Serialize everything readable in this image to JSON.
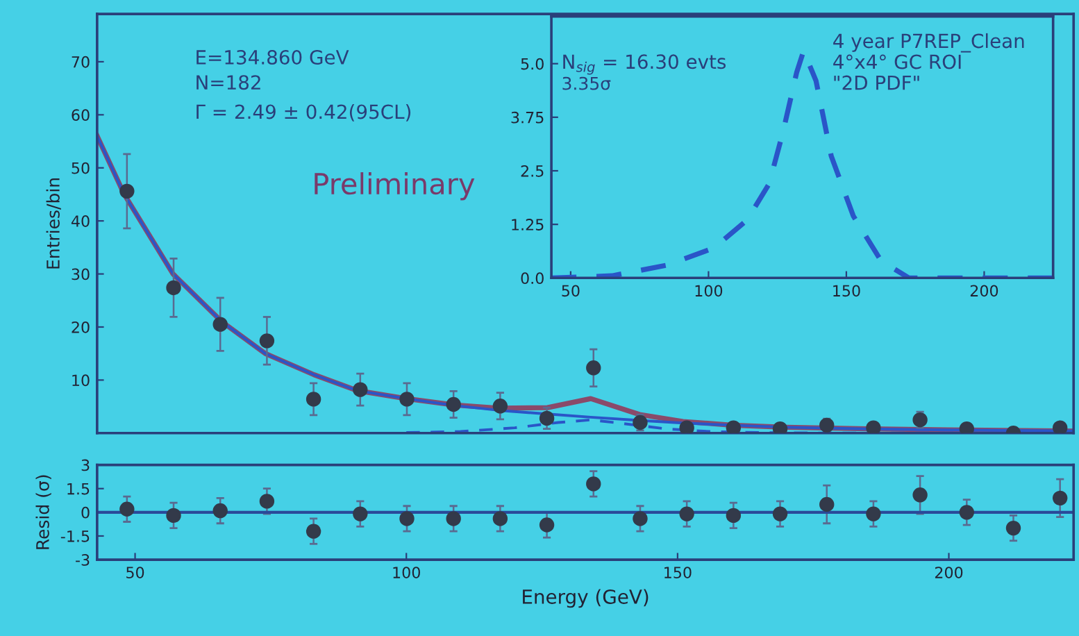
{
  "chart_data": [
    {
      "type": "scatter",
      "ylabel": "Entries/bin",
      "xlim": [
        43,
        223
      ],
      "ylim": [
        0,
        79
      ],
      "yticks": [
        10,
        20,
        30,
        40,
        50,
        60,
        70
      ],
      "tick_labels": "y",
      "grid": false,
      "legend": false,
      "annotations": [
        "E=134.860 GeV",
        "N=182",
        "Γ = 2.49 ± 0.42(95CL)",
        "Preliminary"
      ],
      "series": [
        {
          "type": "line",
          "color": "#8a4a6a",
          "line_style": "solid",
          "marker": "none",
          "x": [
            43,
            48,
            57,
            66,
            74,
            83,
            91,
            100,
            109,
            117,
            126,
            134,
            143,
            151,
            160,
            170,
            185,
            200,
            223
          ],
          "values": [
            56,
            45,
            30,
            21,
            15,
            11,
            8,
            6.5,
            5.3,
            4.7,
            4.8,
            6.5,
            3.5,
            2.2,
            1.5,
            1.1,
            0.8,
            0.6,
            0.4
          ]
        },
        {
          "type": "line",
          "color": "#2a55c8",
          "line_style": "solid",
          "marker": "none",
          "x": [
            43,
            48,
            57,
            66,
            74,
            83,
            91,
            100,
            109,
            117,
            126,
            134,
            143,
            151,
            160,
            170,
            185,
            200,
            223
          ],
          "values": [
            56,
            45,
            30,
            21,
            15,
            11,
            8,
            6.5,
            5.2,
            4.3,
            3.6,
            3.0,
            2.4,
            1.9,
            1.5,
            1.1,
            0.8,
            0.6,
            0.4
          ]
        },
        {
          "type": "line",
          "color": "#2a55c8",
          "line_style": "dashed",
          "marker": "none",
          "x": [
            100,
            110,
            120,
            128,
            134,
            140,
            148,
            156,
            165,
            180,
            223
          ],
          "values": [
            0.1,
            0.3,
            1.0,
            2.0,
            2.5,
            1.8,
            0.8,
            0.3,
            0.1,
            0,
            0
          ]
        },
        {
          "type": "scatter",
          "color": "#333a4a",
          "marker": "circle",
          "x": [
            48.5,
            57.1,
            65.7,
            74.3,
            82.9,
            91.5,
            100.1,
            108.7,
            117.3,
            125.9,
            134.5,
            143.1,
            151.7,
            160.3,
            168.9,
            177.5,
            186.1,
            194.7,
            203.3,
            211.9,
            220.5
          ],
          "values": [
            45.6,
            27.4,
            20.5,
            17.4,
            6.4,
            8.2,
            6.4,
            5.4,
            5.1,
            2.8,
            12.3,
            2.0,
            1.0,
            1.0,
            0.8,
            1.5,
            1.0,
            2.5,
            0.8,
            0,
            1.0
          ],
          "errors": [
            7,
            5.5,
            5,
            4.5,
            3,
            3,
            3,
            2.5,
            2.5,
            2,
            3.5,
            1.5,
            1,
            1,
            1,
            1.2,
            1,
            1.5,
            1,
            null,
            1
          ]
        }
      ]
    },
    {
      "type": "line",
      "xlim": [
        43,
        225
      ],
      "ylim": [
        0,
        6.1
      ],
      "xticks": [
        50,
        100,
        150,
        200
      ],
      "yticks": [
        {
          "value": 5.0,
          "label": "5.0"
        },
        {
          "value": 3.75,
          "label": "3.75"
        },
        {
          "value": 2.5,
          "label": "2.5"
        },
        {
          "value": 1.25,
          "label": "1.25"
        },
        {
          "value": 0.0,
          "label": "0.0"
        }
      ],
      "grid": false,
      "legend": false,
      "annotations": [
        "N$_{sig}$ = 16.30 evts",
        "3.35σ",
        "4 year P7REP_Clean",
        "4°x4° GC ROI",
        "\"2D PDF\""
      ],
      "series": [
        {
          "color": "#2a55c8",
          "line_style": "dashed",
          "marker": "none",
          "x": [
            43,
            65,
            85,
            102,
            114,
            122,
            127,
            132,
            134.5,
            139,
            144.5,
            152.5,
            162.6,
            172.7,
            200,
            225
          ],
          "values": [
            0,
            0.05,
            0.3,
            0.7,
            1.35,
            2.2,
            3.4,
            4.8,
            5.3,
            4.6,
            2.85,
            1.45,
            0.4,
            0.0,
            0,
            0
          ]
        }
      ]
    },
    {
      "type": "scatter",
      "xlabel": "Energy (GeV)",
      "ylabel": "Resid (σ)",
      "xlim": [
        43,
        223
      ],
      "ylim": [
        -3,
        3
      ],
      "xticks": [
        50,
        100,
        150,
        200
      ],
      "yticks": [
        3,
        1.5,
        0,
        -1.5,
        -3
      ],
      "grid": false,
      "legend": false,
      "ref_lines": [
        {
          "axis": "y",
          "value": 0,
          "color": "#2a4a9a",
          "line_style": "solid"
        }
      ],
      "series": [
        {
          "color": "#333a4a",
          "marker": "circle",
          "x": [
            48.5,
            57.1,
            65.7,
            74.3,
            82.9,
            91.5,
            100.1,
            108.7,
            117.3,
            125.9,
            134.5,
            143.1,
            151.7,
            160.3,
            168.9,
            177.5,
            186.1,
            194.7,
            203.3,
            211.9,
            220.5
          ],
          "values": [
            0.2,
            -0.2,
            0.1,
            0.7,
            -1.2,
            -0.1,
            -0.4,
            -0.4,
            -0.4,
            -0.8,
            1.8,
            -0.4,
            -0.1,
            -0.2,
            -0.1,
            0.5,
            -0.1,
            1.1,
            0,
            -1.0,
            0.9
          ],
          "errors": [
            0.8,
            0.8,
            0.8,
            0.8,
            0.8,
            0.8,
            0.8,
            0.8,
            0.8,
            0.8,
            0.8,
            0.8,
            0.8,
            0.8,
            0.8,
            1.2,
            0.8,
            1.2,
            0.8,
            0.8,
            1.2
          ]
        }
      ]
    }
  ]
}
